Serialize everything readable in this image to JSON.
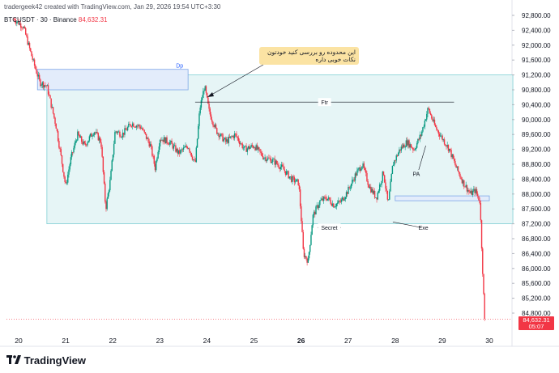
{
  "header": {
    "created_text": "tradergeek42 created with TradingView.com, Jan 29, 2026 19:54 UTC+3:30",
    "symbol": "BTCUSDT · 30 · Binance",
    "last_price": "84,632.31"
  },
  "note": {
    "line1": "این محدوده رو بررسی کنید خودتون",
    "line2": "نکات خوبی داره"
  },
  "price_tag": {
    "price": "84,632.31",
    "countdown": "05:07"
  },
  "brand": {
    "name": "TradingView"
  },
  "colors": {
    "up": "#089981",
    "down": "#f23645",
    "zone_fill": "#e6f5f6",
    "zone_border": "#7fcfd3",
    "dp_fill": "#e3ecfb",
    "dp_border": "#7ea6e8"
  },
  "chart_data": {
    "type": "candlestick",
    "title": "",
    "y_axis": {
      "side": "right",
      "ticks": [
        "92,800.00",
        "92,400.00",
        "92,000.00",
        "91,600.00",
        "91,200.00",
        "90,800.00",
        "90,400.00",
        "90,000.00",
        "89,600.00",
        "89,200.00",
        "88,800.00",
        "88,400.00",
        "88,000.00",
        "87,600.00",
        "87,200.00",
        "86,800.00",
        "86,400.00",
        "86,000.00",
        "85,600.00",
        "85,200.00",
        "84,800.00"
      ],
      "range": [
        84400,
        93000
      ]
    },
    "x_axis": {
      "ticks": [
        "20",
        "21",
        "22",
        "23",
        "24",
        "25",
        "26",
        "27",
        "28",
        "29",
        "30"
      ],
      "bold": [
        "26"
      ]
    },
    "zones": [
      {
        "label": "",
        "price_top": 91200,
        "price_bottom": 87200,
        "day_start": 20.6,
        "day_end": 30.5
      },
      {
        "label": "Dp",
        "price_top": 91350,
        "price_bottom": 90800,
        "day_start": 20.4,
        "day_end": 23.6
      },
      {
        "label": "",
        "price_top": 87950,
        "price_bottom": 87820,
        "day_start": 28.0,
        "day_end": 30.0
      }
    ],
    "annotations": [
      {
        "label": "Ftr",
        "price": 90470,
        "day_start": 23.75,
        "day_end": 29.25
      },
      {
        "label": "Secret",
        "day": 26.6,
        "price": 87100
      },
      {
        "label": "Exe",
        "day": 28.6,
        "price": 87100
      },
      {
        "label": "PA",
        "day": 28.45,
        "price": 88550
      }
    ],
    "series": [
      {
        "name": "BTCUSDT",
        "points": [
          [
            19.9,
            92700
          ],
          [
            20.1,
            92500
          ],
          [
            20.3,
            91600
          ],
          [
            20.45,
            91000
          ],
          [
            20.6,
            90900
          ],
          [
            20.8,
            89800
          ],
          [
            21.0,
            88200
          ],
          [
            21.1,
            88900
          ],
          [
            21.25,
            89600
          ],
          [
            21.4,
            89300
          ],
          [
            21.6,
            89700
          ],
          [
            21.75,
            89400
          ],
          [
            21.85,
            87600
          ],
          [
            21.95,
            88400
          ],
          [
            22.05,
            89700
          ],
          [
            22.2,
            89600
          ],
          [
            22.4,
            89900
          ],
          [
            22.6,
            89800
          ],
          [
            22.8,
            89300
          ],
          [
            22.9,
            88700
          ],
          [
            23.0,
            89500
          ],
          [
            23.2,
            89400
          ],
          [
            23.4,
            89100
          ],
          [
            23.6,
            89300
          ],
          [
            23.75,
            88800
          ],
          [
            23.85,
            90300
          ],
          [
            23.95,
            90900
          ],
          [
            24.05,
            90200
          ],
          [
            24.2,
            89700
          ],
          [
            24.4,
            89400
          ],
          [
            24.6,
            89600
          ],
          [
            24.8,
            89200
          ],
          [
            25.0,
            89300
          ],
          [
            25.2,
            89000
          ],
          [
            25.4,
            88900
          ],
          [
            25.6,
            88700
          ],
          [
            25.8,
            88400
          ],
          [
            25.95,
            88300
          ],
          [
            26.0,
            87400
          ],
          [
            26.05,
            86400
          ],
          [
            26.15,
            86200
          ],
          [
            26.25,
            87400
          ],
          [
            26.4,
            87800
          ],
          [
            26.55,
            87900
          ],
          [
            26.7,
            87700
          ],
          [
            26.85,
            87800
          ],
          [
            27.0,
            88100
          ],
          [
            27.15,
            88500
          ],
          [
            27.3,
            88800
          ],
          [
            27.45,
            88200
          ],
          [
            27.6,
            87900
          ],
          [
            27.75,
            88600
          ],
          [
            27.85,
            87700
          ],
          [
            27.95,
            88800
          ],
          [
            28.1,
            89200
          ],
          [
            28.25,
            89400
          ],
          [
            28.4,
            89200
          ],
          [
            28.55,
            89600
          ],
          [
            28.7,
            90300
          ],
          [
            28.85,
            89800
          ],
          [
            29.0,
            89500
          ],
          [
            29.15,
            89200
          ],
          [
            29.3,
            88700
          ],
          [
            29.45,
            88300
          ],
          [
            29.6,
            88000
          ],
          [
            29.7,
            88100
          ],
          [
            29.8,
            87800
          ],
          [
            29.85,
            86200
          ],
          [
            29.9,
            84600
          ]
        ]
      }
    ]
  }
}
